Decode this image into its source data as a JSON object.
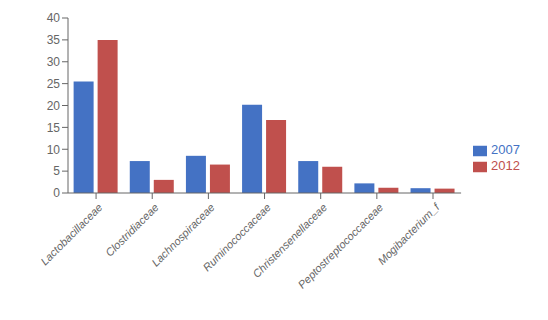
{
  "chart_data": {
    "type": "bar",
    "categories": [
      "Lactobacillaceae",
      "Clostridiaceae",
      "Lachnospiraceae",
      "Ruminococcaceae",
      "Christensenellaceae",
      "Peptostreptococcaceae",
      "Mogibacterium_f"
    ],
    "series": [
      {
        "name": "2007",
        "color": "#4472C4",
        "values": [
          25.5,
          7.3,
          8.5,
          20.2,
          7.3,
          2.2,
          1.1
        ]
      },
      {
        "name": "2012",
        "color": "#C0504D",
        "values": [
          35.0,
          3.0,
          6.5,
          16.7,
          6.0,
          1.2,
          1.0
        ]
      }
    ],
    "ylim": [
      0,
      40
    ],
    "yticks": [
      0,
      5,
      10,
      15,
      20,
      25,
      30,
      35,
      40
    ],
    "grid": false,
    "legend": "right"
  }
}
